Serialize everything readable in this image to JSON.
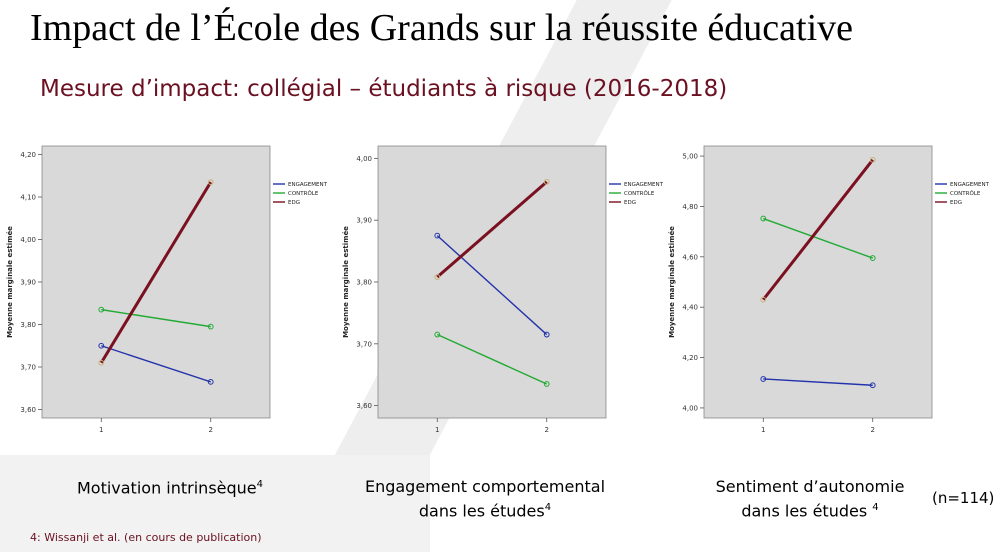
{
  "slide": {
    "title": "Impact de l’École des Grands sur la réussite éducative",
    "subtitle": "Mesure d’impact: collégial – étudiants à risque (2016-2018)",
    "sample_size": "(n=114)",
    "footnote": "4: Wissanji et al. (en cours de publication)"
  },
  "colors": {
    "ENGAGEMENT": "#2233aa",
    "CONTRÔLE": "#22aa33",
    "EDG": "#7a1020",
    "plot_bg": "#d9d9d9"
  },
  "chart_data": [
    {
      "type": "line",
      "caption": "Motivation intrinsèque",
      "caption_sup": "4",
      "ylabel": "Moyenne marginale estimée",
      "x": [
        1,
        2
      ],
      "ylim": [
        3.58,
        4.22
      ],
      "yticks": [
        "3,60",
        "3,70",
        "3,80",
        "3,90",
        "4,00",
        "4,10",
        "4,20"
      ],
      "ytick_values": [
        3.6,
        3.7,
        3.8,
        3.9,
        4.0,
        4.1,
        4.2
      ],
      "xticks": [
        "1",
        "2"
      ],
      "legend_position": "top-right",
      "series": [
        {
          "name": "ENGAGEMENT",
          "values": [
            3.75,
            3.665
          ]
        },
        {
          "name": "CONTRÔLE",
          "values": [
            3.835,
            3.795
          ]
        },
        {
          "name": "EDG",
          "values": [
            3.71,
            4.135
          ]
        }
      ]
    },
    {
      "type": "line",
      "caption": "Engagement comportemental",
      "caption_line2": "dans les études",
      "caption_sup": "4",
      "ylabel": "Moyenne marginale estimée",
      "x": [
        1,
        2
      ],
      "ylim": [
        3.58,
        4.02
      ],
      "yticks": [
        "3,60",
        "3,70",
        "3,80",
        "3,90",
        "4,00"
      ],
      "ytick_values": [
        3.6,
        3.7,
        3.8,
        3.9,
        4.0
      ],
      "xticks": [
        "1",
        "2"
      ],
      "legend_position": "top-right",
      "series": [
        {
          "name": "ENGAGEMENT",
          "values": [
            3.875,
            3.715
          ]
        },
        {
          "name": "CONTRÔLE",
          "values": [
            3.715,
            3.635
          ]
        },
        {
          "name": "EDG",
          "values": [
            3.808,
            3.962
          ]
        }
      ]
    },
    {
      "type": "line",
      "caption": "Sentiment d’autonomie",
      "caption_line2": "dans les études",
      "caption_sup": "4",
      "ylabel": "Moyenne marginale estimée",
      "x": [
        1,
        2
      ],
      "ylim": [
        3.96,
        5.04
      ],
      "yticks": [
        "4,00",
        "4,20",
        "4,40",
        "4,60",
        "4,80",
        "5,00"
      ],
      "ytick_values": [
        4.0,
        4.2,
        4.4,
        4.6,
        4.8,
        5.0
      ],
      "xticks": [
        "1",
        "2"
      ],
      "legend_position": "top-right",
      "series": [
        {
          "name": "ENGAGEMENT",
          "values": [
            4.115,
            4.09
          ]
        },
        {
          "name": "CONTRÔLE",
          "values": [
            4.752,
            4.595
          ]
        },
        {
          "name": "EDG",
          "values": [
            4.43,
            4.985
          ]
        }
      ]
    }
  ]
}
